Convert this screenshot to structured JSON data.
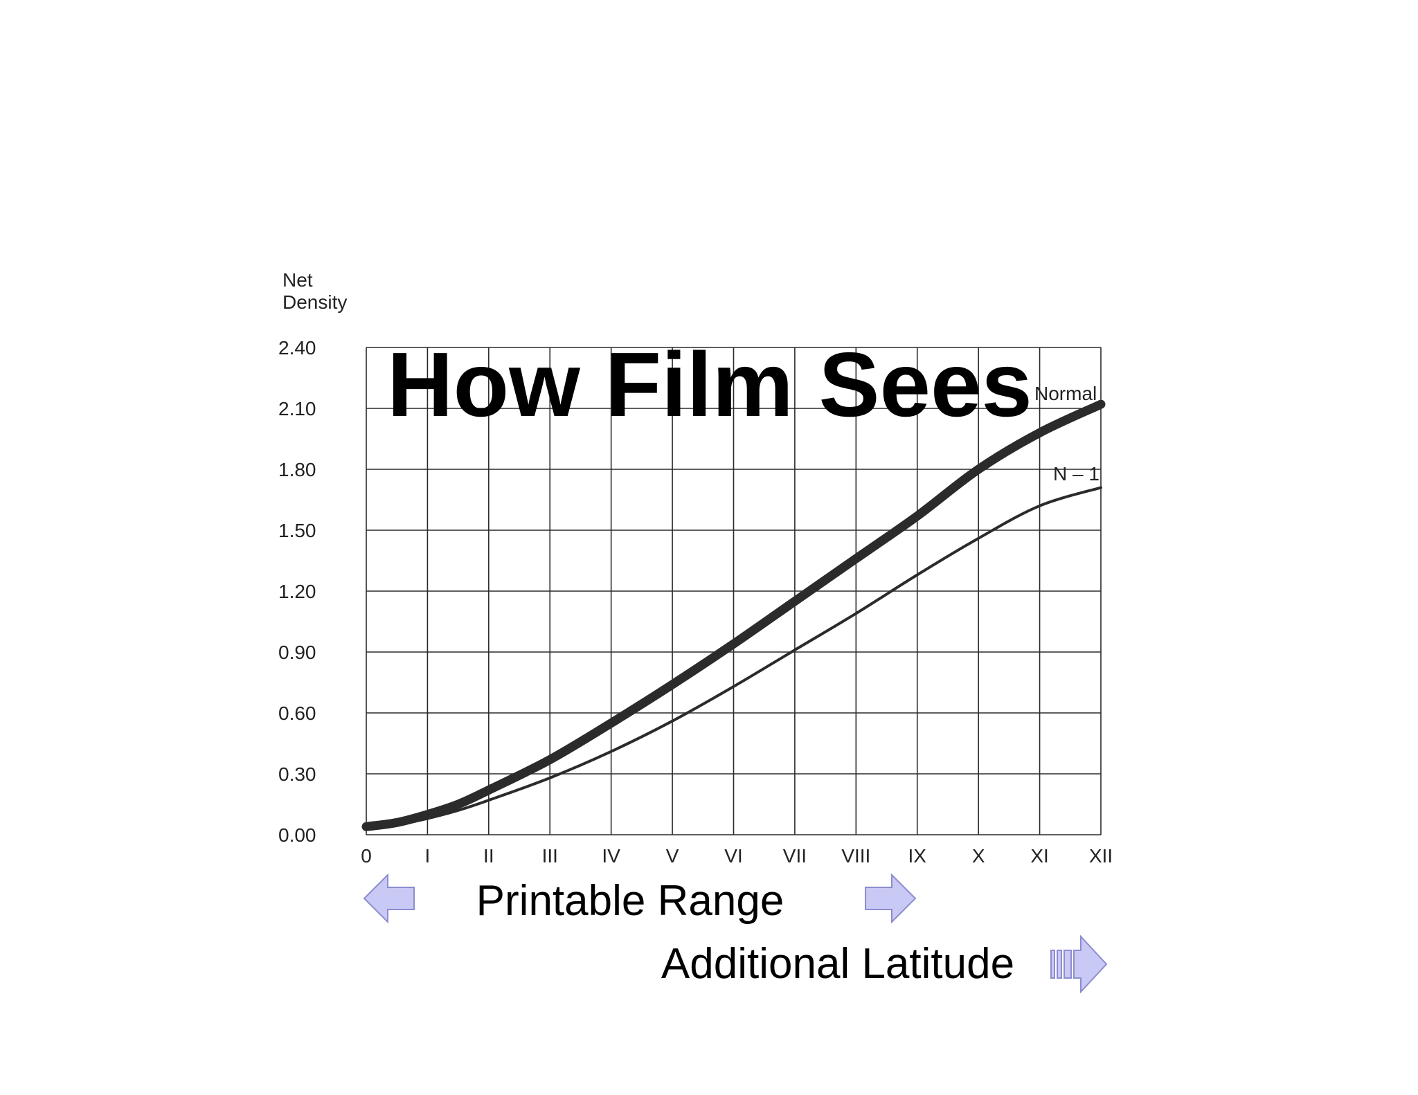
{
  "slide": {
    "title": "How Film Sees",
    "printable_range_label": "Printable Range",
    "additional_latitude_label": "Additional Latitude",
    "arrow_color": "#c9c9f5",
    "arrow_stroke": "#8c8ccf"
  },
  "chart_data": {
    "type": "line",
    "ylabel": "Net Density",
    "ylabel_lines": [
      "Net",
      "Density"
    ],
    "ylim": [
      0,
      2.4
    ],
    "yticks": [
      "0.00",
      "0.30",
      "0.60",
      "0.90",
      "1.20",
      "1.50",
      "1.80",
      "2.10",
      "2.40"
    ],
    "xlim": [
      0,
      12
    ],
    "xticks": [
      "0",
      "I",
      "II",
      "III",
      "IV",
      "V",
      "VI",
      "VII",
      "VIII",
      "IX",
      "X",
      "XI",
      "XII"
    ],
    "grid": true,
    "series": [
      {
        "name": "Normal",
        "color": "#2b2b2b",
        "x": [
          0,
          0.5,
          1,
          1.5,
          2,
          3,
          4,
          5,
          6,
          7,
          8,
          9,
          10,
          11,
          12
        ],
        "values": [
          0.04,
          0.06,
          0.1,
          0.15,
          0.22,
          0.37,
          0.55,
          0.74,
          0.94,
          1.15,
          1.36,
          1.57,
          1.8,
          1.98,
          2.12
        ]
      },
      {
        "name": "N – 1",
        "color": "#2b2b2b",
        "x": [
          0,
          0.5,
          1,
          1.5,
          2,
          3,
          4,
          5,
          6,
          7,
          8,
          9,
          10,
          11,
          12
        ],
        "values": [
          0.04,
          0.05,
          0.08,
          0.12,
          0.17,
          0.28,
          0.41,
          0.56,
          0.73,
          0.91,
          1.09,
          1.28,
          1.46,
          1.62,
          1.71
        ]
      }
    ]
  }
}
